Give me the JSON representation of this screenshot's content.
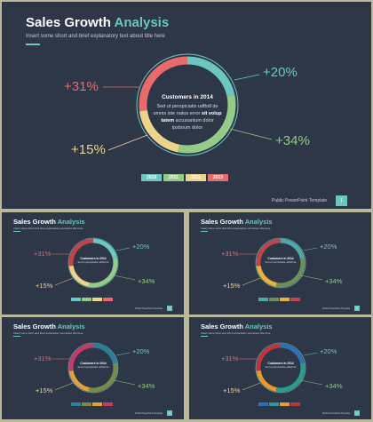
{
  "slide": {
    "title_part1": "Sales Growth",
    "title_part2": "Analysis",
    "subtitle": "Insert some short and brief explanatory text about title here",
    "center_title": "Customers in 2014",
    "center_body_1": "Sed ut perspiciatis udfbdl de",
    "center_body_2": "omnis iste natus error",
    "center_bold_1": "sit volup",
    "center_bold_2": "tatem",
    "center_body_3": "accusanium dolor",
    "center_body_4": "ipsboum dolor",
    "pct_top_right": "+20%",
    "pct_top_left": "+31%",
    "pct_bottom_right": "+34%",
    "pct_bottom_left": "+15%",
    "legend": [
      "2010",
      "2011",
      "2012",
      "2013"
    ],
    "footer": "Public PowerPoint Template",
    "page": "1"
  },
  "colors": {
    "background": "#2e3748",
    "accent": "#6cc7c3",
    "red": "#e86a6a",
    "green": "#93cb87",
    "yellow": "#ecd58a",
    "teal": "#6cc7c3"
  }
}
